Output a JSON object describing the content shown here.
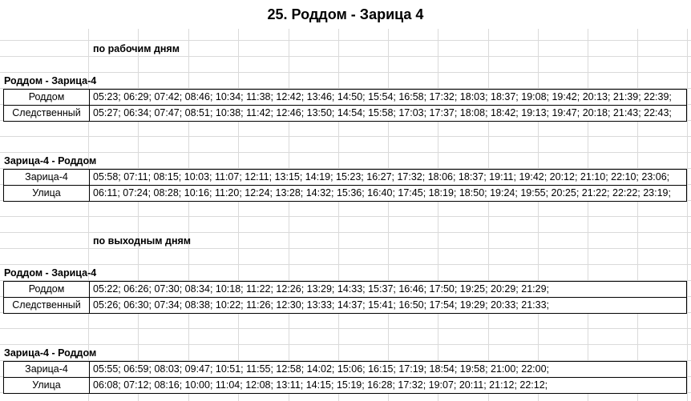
{
  "title": "25. Роддом - Зарица 4",
  "sections": [
    {
      "heading": "по рабочим дням",
      "groups": [
        {
          "title": "Роддом - Зарица-4",
          "rows": [
            {
              "stop": "Роддом",
              "times": "05:23; 06:29; 07:42; 08:46; 10:34; 11:38; 12:42; 13:46; 14:50; 15:54; 16:58; 17:32; 18:03; 18:37; 19:08; 19:42; 20:13; 21:39; 22:39;"
            },
            {
              "stop": "Следственный",
              "times": "05:27; 06:34; 07:47; 08:51; 10:38; 11:42; 12:46; 13:50; 14:54; 15:58; 17:03; 17:37; 18:08; 18:42; 19:13; 19:47; 20:18; 21:43; 22:43;"
            }
          ]
        },
        {
          "title": "Зарица-4 - Роддом",
          "rows": [
            {
              "stop": "Зарица-4",
              "times": "05:58; 07:11; 08:15; 10:03; 11:07; 12:11; 13:15; 14:19; 15:23; 16:27; 17:32; 18:06; 18:37; 19:11; 19:42; 20:12; 21:10; 22:10; 23:06;"
            },
            {
              "stop": "Улица",
              "times": "06:11; 07:24; 08:28; 10:16; 11:20; 12:24; 13:28; 14:32; 15:36; 16:40; 17:45; 18:19; 18:50; 19:24; 19:55; 20:25; 21:22; 22:22; 23:19;"
            }
          ]
        }
      ]
    },
    {
      "heading": "по выходным дням",
      "groups": [
        {
          "title": "Роддом - Зарица-4",
          "rows": [
            {
              "stop": "Роддом",
              "times": "05:22; 06:26; 07:30; 08:34; 10:18; 11:22; 12:26; 13:29; 14:33; 15:37; 16:46; 17:50; 19:25; 20:29; 21:29;"
            },
            {
              "stop": "Следственный",
              "times": "05:26; 06:30; 07:34; 08:38; 10:22; 11:26; 12:30; 13:33; 14:37; 15:41; 16:50; 17:54; 19:29; 20:33; 21:33;"
            }
          ]
        },
        {
          "title": "Зарица-4 - Роддом",
          "rows": [
            {
              "stop": "Зарица-4",
              "times": "05:55; 06:59; 08:03; 09:47; 10:51; 11:55; 12:58; 14:02; 15:06; 16:15; 17:19; 18:54; 19:58; 21:00; 22:00;"
            },
            {
              "stop": "Улица",
              "times": "06:08; 07:12; 08:16; 10:00; 11:04; 12:08; 13:11; 14:15; 15:19; 16:28; 17:32; 19:07; 20:11; 21:12; 22:12;"
            }
          ]
        }
      ]
    }
  ]
}
